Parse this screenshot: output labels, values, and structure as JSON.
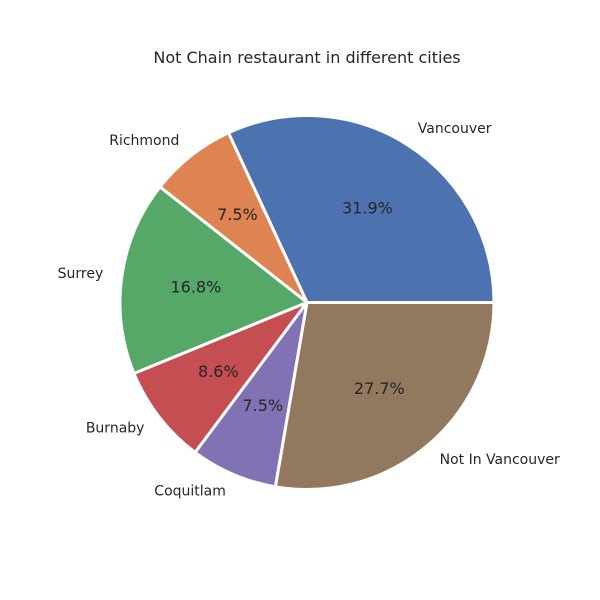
{
  "chart_data": {
    "type": "pie",
    "title": "Not Chain restaurant in different cities",
    "categories": [
      "Vancouver",
      "Richmond",
      "Surrey",
      "Burnaby",
      "Coquitlam",
      "Not In Vancouver"
    ],
    "values": [
      31.9,
      7.5,
      16.8,
      8.6,
      7.5,
      27.7
    ],
    "percent_labels": [
      "31.9%",
      "7.5%",
      "16.8%",
      "8.6%",
      "7.5%",
      "27.7%"
    ],
    "colors": [
      "#4c72b0",
      "#dd8452",
      "#55a868",
      "#c44e52",
      "#8172b3",
      "#937860"
    ],
    "start_angle_deg": 0,
    "direction": "counterclockwise",
    "edge_color": "#ffffff"
  }
}
